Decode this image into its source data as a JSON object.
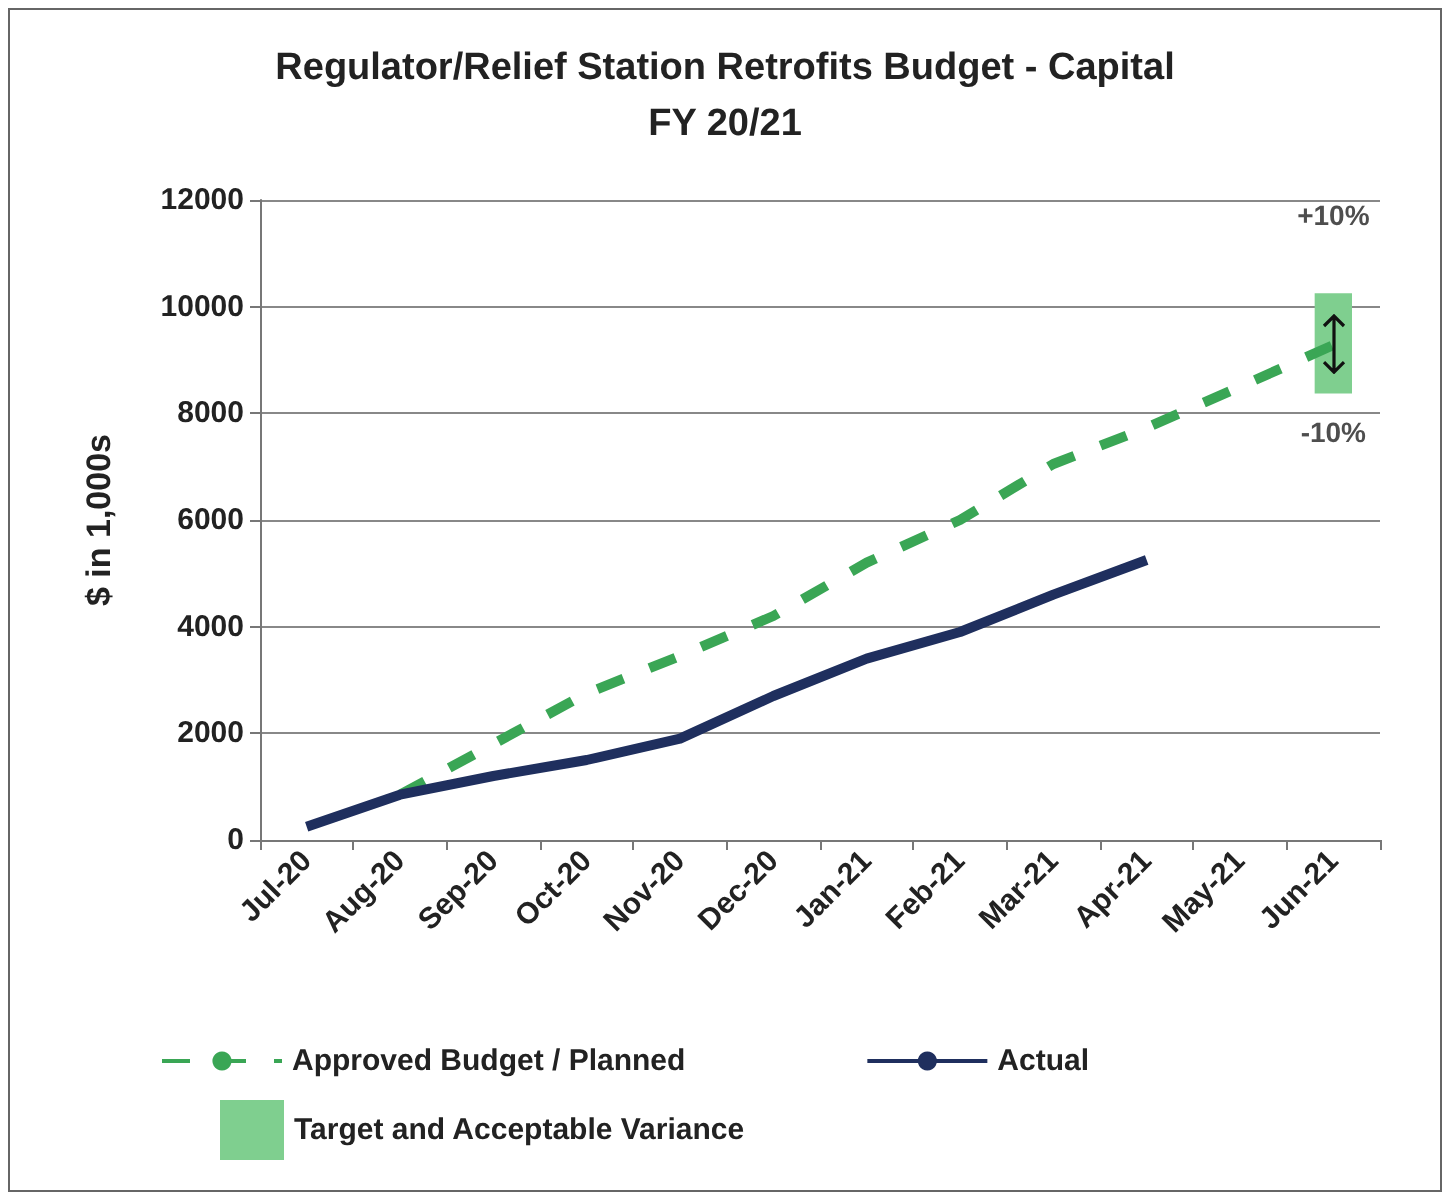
{
  "chart_data": {
    "type": "line",
    "title": "Regulator/Relief Station Retrofits Budget - Capital\nFY 20/21",
    "ylabel": "$ in 1,000s",
    "categories": [
      "Jul-20",
      "Aug-20",
      "Sep-20",
      "Oct-20",
      "Nov-20",
      "Dec-20",
      "Jan-21",
      "Feb-21",
      "Mar-21",
      "Apr-21",
      "May-21",
      "Jun-21"
    ],
    "series": [
      {
        "name": "Approved Budget / Planned",
        "color": "#3aa655",
        "line_style": "dashed",
        "values": [
          null,
          850,
          1800,
          2750,
          3450,
          4200,
          5200,
          6000,
          7050,
          7730,
          8500,
          9280
        ]
      },
      {
        "name": "Actual",
        "color": "#1f2f5e",
        "line_style": "solid",
        "values": [
          250,
          850,
          1200,
          1500,
          1900,
          2700,
          3400,
          3900,
          4600,
          5250,
          null,
          null
        ]
      },
      {
        "name": "Target and Acceptable Variance",
        "type": "bar",
        "color": "#7fcf8f",
        "base": [
          null,
          null,
          null,
          null,
          null,
          null,
          null,
          null,
          null,
          null,
          null,
          8370
        ],
        "values": [
          null,
          null,
          null,
          null,
          null,
          null,
          null,
          null,
          null,
          null,
          null,
          1880
        ]
      }
    ],
    "annotations": [
      {
        "text": "+10%",
        "x": "Jun-21",
        "y": 10250
      },
      {
        "text": "-10%",
        "x": "Jun-21",
        "y": 8370
      }
    ],
    "ylim": [
      0,
      12000
    ],
    "yticks": [
      0,
      2000,
      4000,
      6000,
      8000,
      10000,
      12000
    ],
    "grid": "y",
    "legend": "bottom",
    "marker": "none"
  }
}
